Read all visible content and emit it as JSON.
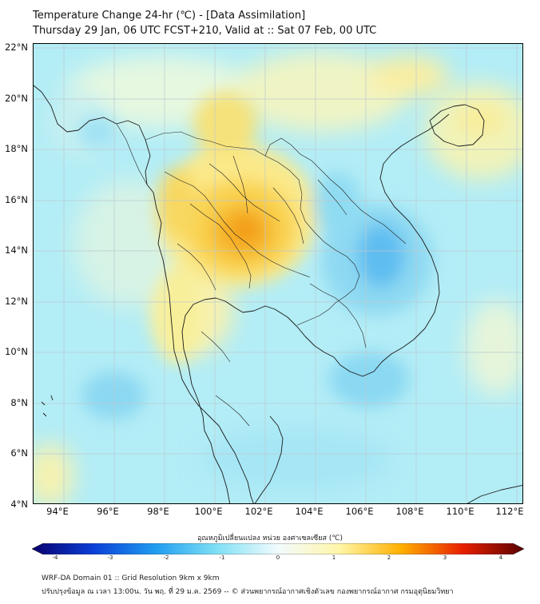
{
  "title_line1": "Temperature Change 24-hr (℃) - [Data Assimilation]",
  "title_line2": "Thursday 29 Jan, 06 UTC FCST+210, Valid at :: Sat 07 Feb, 00 UTC",
  "lat_labels": [
    "22°N",
    "20°N",
    "18°N",
    "16°N",
    "14°N",
    "12°N",
    "10°N",
    "8°N",
    "6°N",
    "4°N"
  ],
  "lon_labels": [
    "94°E",
    "96°E",
    "98°E",
    "100°E",
    "102°E",
    "104°E",
    "106°E",
    "108°E",
    "110°E",
    "112°E"
  ],
  "colorbar": {
    "title": "อุณหภูมิเปลี่ยนแปลง หน่วย องศาเซลเซียส (℃)",
    "ticks": [
      "-4",
      "-3",
      "-2",
      "-1",
      "0",
      "1",
      "2",
      "3",
      "4"
    ],
    "min": -4,
    "max": 4,
    "colors": [
      "#08006e",
      "#0c3fd6",
      "#1f9cf0",
      "#7fe0f5",
      "#f2fbfd",
      "#fff6a8",
      "#ffb000",
      "#e82000",
      "#5a0000"
    ]
  },
  "footer_line1": "WRF-DA Domain 01 :: Grid Resolution 9km x 9km",
  "footer_line2": "ปรับปรุงข้อมูล ณ เวลา 13:00น. วัน พฤ. ที่ 29 ม.ค. 2569 -- © ส่วนพยากรณ์อากาศเชิงตัวเลข กองพยากรณ์อากาศ กรมอุตุนิยมวิทยา"
}
